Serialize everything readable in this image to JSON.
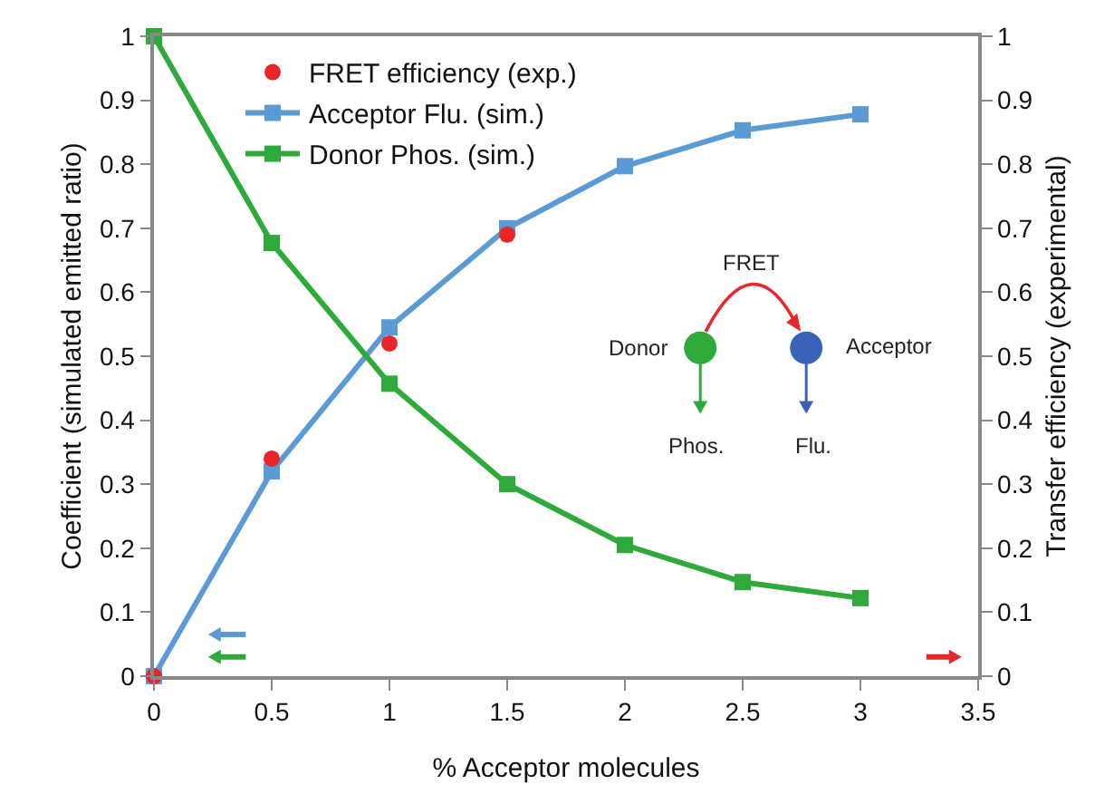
{
  "chart_data": {
    "type": "line",
    "xlabel": "% Acceptor molecules",
    "ylabel": "Coefficient (simulated emitted ratio)",
    "y2label": "Transfer efficiency (experimental)",
    "xlim": [
      0,
      3.5
    ],
    "xticks": [
      0,
      0.5,
      1,
      1.5,
      2,
      2.5,
      3,
      3.5
    ],
    "ylim": [
      0,
      1
    ],
    "yticks": [
      0,
      0.1,
      0.2,
      0.3,
      0.4,
      0.5,
      0.6,
      0.7,
      0.8,
      0.9,
      1
    ],
    "y2lim": [
      0,
      1
    ],
    "y2ticks": [
      0,
      0.1,
      0.2,
      0.3,
      0.4,
      0.5,
      0.6,
      0.7,
      0.8,
      0.9,
      1
    ],
    "legend": "top left",
    "grid": false,
    "series": [
      {
        "name": "FRET efficiency (exp.)",
        "type": "scatter",
        "axis": "y2",
        "marker": "circle",
        "color": "#e8262a",
        "x": [
          0,
          0.5,
          1,
          1.5
        ],
        "values": [
          0,
          0.34,
          0.52,
          0.69
        ]
      },
      {
        "name": "Acceptor Flu. (sim.)",
        "type": "line",
        "marker": "square",
        "color": "#5b9bd5",
        "x": [
          0,
          0.5,
          1,
          1.5,
          2,
          2.5,
          3
        ],
        "values": [
          0,
          0.32,
          0.545,
          0.7,
          0.797,
          0.853,
          0.878
        ]
      },
      {
        "name": "Donor Phos. (sim.)",
        "type": "line",
        "marker": "square",
        "color": "#2eaa3a",
        "x": [
          0,
          0.5,
          1,
          1.5,
          2,
          2.5,
          3
        ],
        "values": [
          1,
          0.677,
          0.457,
          0.3,
          0.205,
          0.147,
          0.122
        ]
      }
    ],
    "annotations": [
      "FRET",
      "Donor",
      "Acceptor",
      "Phos.",
      "Flu."
    ]
  }
}
